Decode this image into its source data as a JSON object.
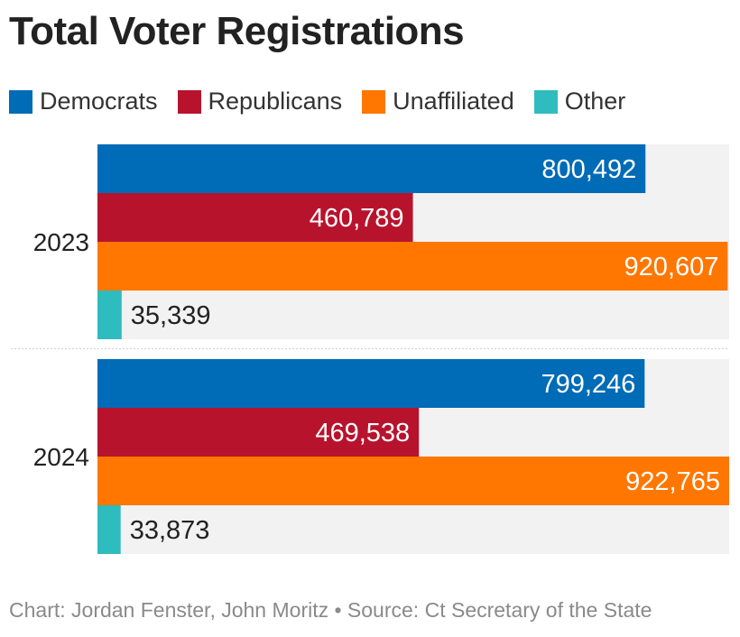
{
  "title": "Total Voter Registrations",
  "legend": [
    {
      "label": "Democrats",
      "color": "#006bb6"
    },
    {
      "label": "Republicans",
      "color": "#b8132d"
    },
    {
      "label": "Unaffiliated",
      "color": "#ff7700"
    },
    {
      "label": "Other",
      "color": "#2fbcbf"
    }
  ],
  "footer": "Chart: Jordan Fenster, John Moritz • Source: Ct Secretary of the State",
  "chart_data": {
    "type": "bar",
    "orientation": "horizontal",
    "categories": [
      "2023",
      "2024"
    ],
    "series": [
      {
        "name": "Democrats",
        "color": "#006bb6",
        "values": [
          800492,
          799246
        ],
        "labels": [
          "800,492",
          "799,246"
        ]
      },
      {
        "name": "Republicans",
        "color": "#b8132d",
        "values": [
          460789,
          469538
        ],
        "labels": [
          "460,789",
          "469,538"
        ]
      },
      {
        "name": "Unaffiliated",
        "color": "#ff7700",
        "values": [
          920607,
          922765
        ],
        "labels": [
          "920,607",
          "922,765"
        ]
      },
      {
        "name": "Other",
        "color": "#2fbcbf",
        "values": [
          35339,
          33873
        ],
        "labels": [
          "35,339",
          "33,873"
        ]
      }
    ],
    "xlim": [
      0,
      922765
    ],
    "grid": false,
    "legend_position": "top-left"
  }
}
